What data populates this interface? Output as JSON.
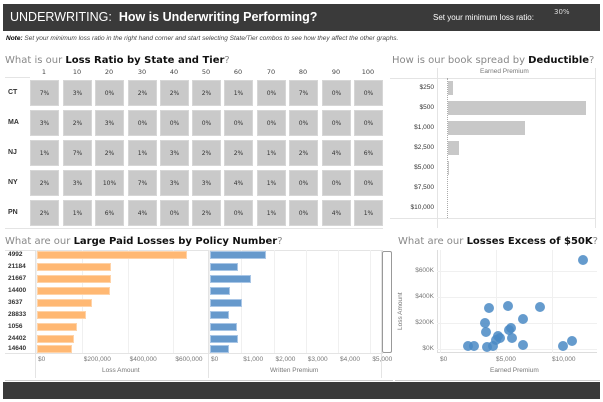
{
  "header": {
    "prefix": "UNDERWRITING:",
    "title": "How is Underwriting Performing?",
    "loss_ratio_label": "Set your minimum loss ratio:",
    "loss_ratio_value": "30%"
  },
  "note": {
    "label": "Note:",
    "text": "Set your minimum loss ratio in the right hand corner and start selecting State/Tier combos to see how they affect the other graphs."
  },
  "heatmap": {
    "title_pre": "What is our ",
    "title_bold": "Loss Ratio by State and Tier",
    "title_post": "?",
    "tiers": [
      "1",
      "10",
      "20",
      "30",
      "40",
      "50",
      "60",
      "70",
      "80",
      "90",
      "100"
    ],
    "rows": [
      {
        "state": "CT",
        "values": [
          "7%",
          "3%",
          "0%",
          "2%",
          "2%",
          "2%",
          "1%",
          "0%",
          "7%",
          "0%",
          "0%"
        ]
      },
      {
        "state": "MA",
        "values": [
          "3%",
          "2%",
          "3%",
          "0%",
          "0%",
          "0%",
          "0%",
          "0%",
          "0%",
          "0%",
          "0%"
        ]
      },
      {
        "state": "NJ",
        "values": [
          "1%",
          "7%",
          "2%",
          "1%",
          "3%",
          "2%",
          "2%",
          "1%",
          "2%",
          "4%",
          "6%"
        ]
      },
      {
        "state": "NY",
        "values": [
          "2%",
          "3%",
          "10%",
          "7%",
          "3%",
          "3%",
          "4%",
          "1%",
          "0%",
          "0%",
          "0%"
        ]
      },
      {
        "state": "PN",
        "values": [
          "2%",
          "1%",
          "6%",
          "4%",
          "0%",
          "2%",
          "0%",
          "1%",
          "0%",
          "4%",
          "1%"
        ]
      }
    ],
    "cell_color": "#c9c9c9"
  },
  "chart_data": [
    {
      "type": "bar",
      "orientation": "horizontal",
      "title": "How is our book spread by Deductible?",
      "title_pre": "How is our book spread by ",
      "title_bold": "Deductible",
      "title_post": "?",
      "xlabel": "Earned Premium",
      "categories": [
        "$250",
        "$500",
        "$1,000",
        "$2,500",
        "$5,000",
        "$7,500",
        "$10,000"
      ],
      "values": [
        15,
        413,
        230,
        33,
        2,
        0,
        0
      ],
      "color": "#c8c8c8"
    },
    {
      "type": "bar",
      "orientation": "horizontal",
      "title_pre": "What are our ",
      "title_bold": "Large Paid Losses by Policy Number",
      "title_post": "?",
      "categories": [
        "4992",
        "21184",
        "21667",
        "14400",
        "3637",
        "28833",
        "1056",
        "24402",
        "14640"
      ],
      "series": [
        {
          "name": "Loss Amount",
          "values": [
            656000,
            324000,
            323000,
            320000,
            240000,
            216000,
            176000,
            163000,
            152000
          ],
          "color": "#ffb873",
          "xlim": [
            0,
            690000
          ],
          "ticks": [
            "$0",
            "$200,000",
            "$400,000",
            "$600,000"
          ],
          "tick_values": [
            0,
            200000,
            400000,
            600000
          ]
        },
        {
          "name": "Written Premium",
          "values": [
            1750,
            880,
            1260,
            615,
            990,
            575,
            840,
            880,
            575
          ],
          "color": "#6699cc",
          "xlim": [
            0,
            5300
          ],
          "ticks": [
            "$0",
            "$1,000",
            "$2,000",
            "$3,000",
            "$4,000",
            "$5,000"
          ],
          "tick_values": [
            0,
            1000,
            2000,
            3000,
            4000,
            5000
          ]
        }
      ]
    },
    {
      "type": "scatter",
      "title_pre": "What are our ",
      "title_bold": "Losses Excess of $50K",
      "title_post": "?",
      "xlabel": "Earned Premium",
      "ylabel": "Loss Amount",
      "xlim": [
        0,
        13500
      ],
      "ylim": [
        0,
        720000
      ],
      "xticks": [
        "$0",
        "$5,000",
        "$10,000"
      ],
      "xtick_values": [
        0,
        5000,
        10000
      ],
      "yticks": [
        "$0K",
        "$200K",
        "$400K",
        "$600K"
      ],
      "ytick_values": [
        0,
        200000,
        400000,
        600000
      ],
      "color": "#4a8ac4",
      "points": [
        [
          12800,
          687000
        ],
        [
          4380,
          314000
        ],
        [
          6100,
          327000
        ],
        [
          8900,
          322000
        ],
        [
          7380,
          232000
        ],
        [
          4000,
          203000
        ],
        [
          4130,
          134000
        ],
        [
          6300,
          162000
        ],
        [
          6150,
          144000
        ],
        [
          5160,
          103000
        ],
        [
          5340,
          88000
        ],
        [
          6440,
          82000
        ],
        [
          5040,
          72000
        ],
        [
          2490,
          26000
        ],
        [
          3000,
          26000
        ],
        [
          4240,
          18000
        ],
        [
          4690,
          21000
        ],
        [
          7390,
          33000
        ],
        [
          10950,
          23000
        ],
        [
          11750,
          62000
        ]
      ]
    }
  ]
}
